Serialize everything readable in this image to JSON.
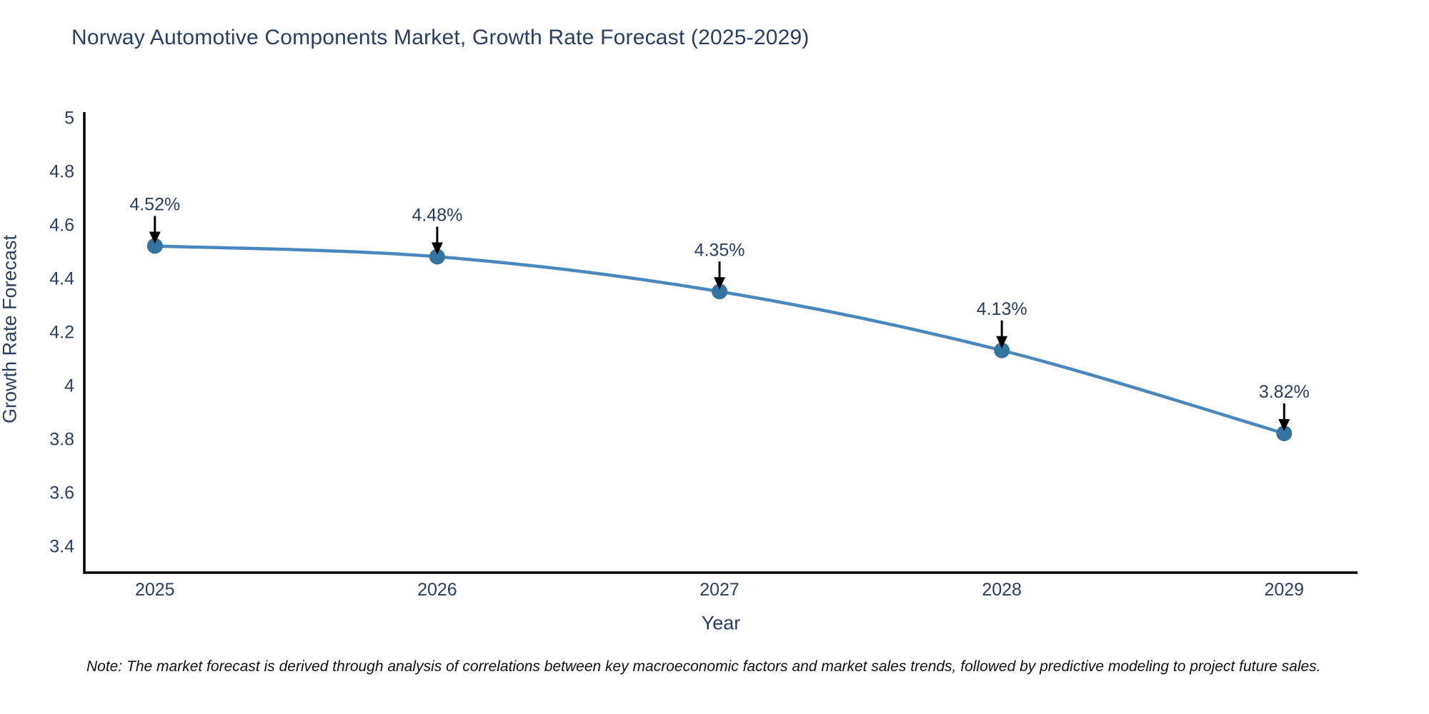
{
  "title": "Norway Automotive Components Market, Growth Rate Forecast (2025-2029)",
  "note": "Note: The market forecast is derived through analysis of correlations between key macroeconomic factors and market sales trends, followed by predictive modeling to project future sales.",
  "chart_data": {
    "type": "line",
    "x": [
      2025,
      2026,
      2027,
      2028,
      2029
    ],
    "x_tick_labels": [
      "2025",
      "2026",
      "2027",
      "2028",
      "2029"
    ],
    "values": [
      4.52,
      4.48,
      4.35,
      4.13,
      3.82
    ],
    "point_labels": [
      "4.52%",
      "4.48%",
      "4.35%",
      "4.13%",
      "3.82%"
    ],
    "title": "Norway Automotive Components Market, Growth Rate Forecast (2025-2029)",
    "xlabel": "Year",
    "ylabel": "Growth Rate Forecast",
    "yticks": [
      5,
      4.8,
      4.6,
      4.4,
      4.2,
      4,
      3.8,
      3.6,
      3.4
    ],
    "ytick_labels": [
      "5",
      "4.8",
      "4.6",
      "4.4",
      "4.2",
      "4",
      "3.8",
      "3.6",
      "3.4"
    ],
    "ylim": [
      3.3,
      5.02
    ],
    "xlim": [
      2024.75,
      2029.26
    ],
    "grid": false,
    "legend": "none",
    "marker_style": "circle-with-down-arrow-annotation",
    "colors": {
      "line": "#4a87bd",
      "marker": "#35749f",
      "axis": "#000000",
      "tick_text": "#2a3f5f",
      "annotation_text": "#2a3f5f",
      "annotation_arrow": "#000000",
      "background": "#ffffff"
    }
  }
}
